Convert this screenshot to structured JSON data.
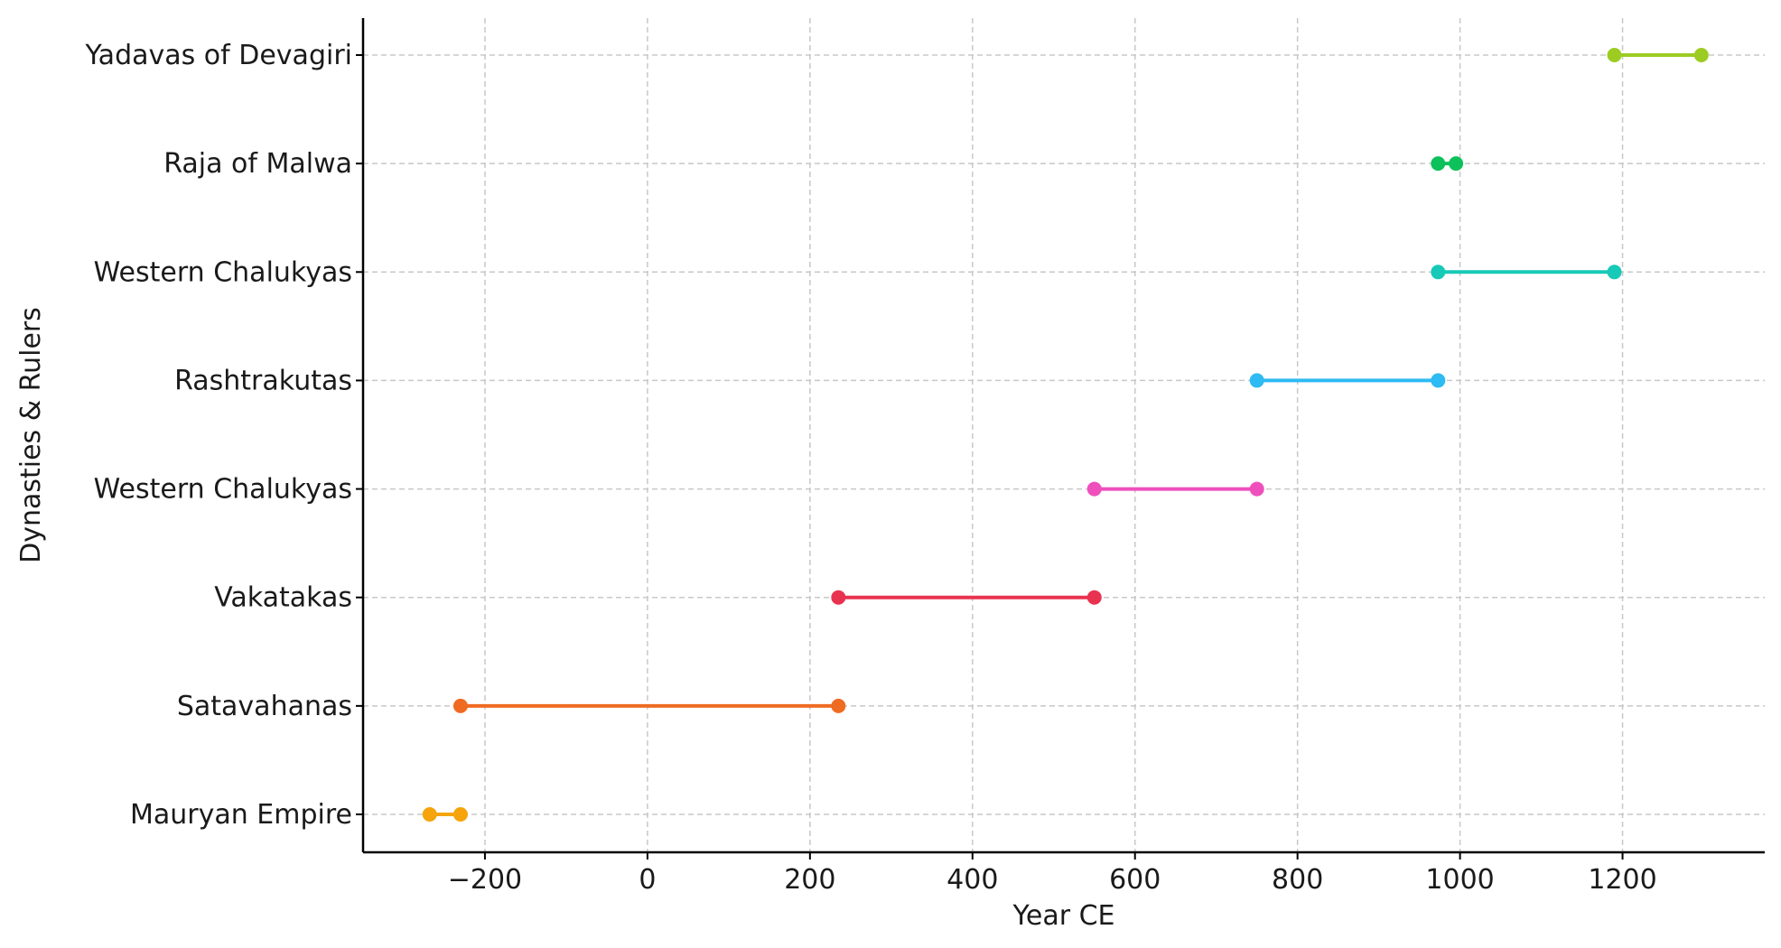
{
  "chart_data": {
    "type": "timeline",
    "title": "",
    "xlabel": "Year CE",
    "ylabel": "Dynasties & Rulers",
    "xlim": [
      -350,
      1375
    ],
    "xticks": [
      -200,
      0,
      200,
      400,
      600,
      800,
      1000,
      1200
    ],
    "xtick_labels": [
      "−200",
      "0",
      "200",
      "400",
      "600",
      "800",
      "1000",
      "1200"
    ],
    "grid": true,
    "legend": "none",
    "categories": [
      "Mauryan Empire",
      "Satavahanas",
      "Vakatakas",
      "Western Chalukyas",
      "Rashtrakutas",
      "Western Chalukyas",
      "Raja of Malwa",
      "Yadavas of Devagiri"
    ],
    "series": [
      {
        "label": "Mauryan Empire",
        "start": -268,
        "end": -230,
        "color": "#f5a40c"
      },
      {
        "label": "Satavahanas",
        "start": -230,
        "end": 235,
        "color": "#ef6b22"
      },
      {
        "label": "Vakatakas",
        "start": 235,
        "end": 550,
        "color": "#e83350"
      },
      {
        "label": "Western Chalukyas",
        "start": 550,
        "end": 750,
        "color": "#ef4fbd"
      },
      {
        "label": "Rashtrakutas",
        "start": 750,
        "end": 973,
        "color": "#2ebaf2"
      },
      {
        "label": "Western Chalukyas",
        "start": 973,
        "end": 1190,
        "color": "#17c9b7"
      },
      {
        "label": "Raja of Malwa",
        "start": 973,
        "end": 995,
        "color": "#0dc15a"
      },
      {
        "label": "Yadavas of Devagiri",
        "start": 1190,
        "end": 1297,
        "color": "#9ccc22"
      }
    ]
  }
}
